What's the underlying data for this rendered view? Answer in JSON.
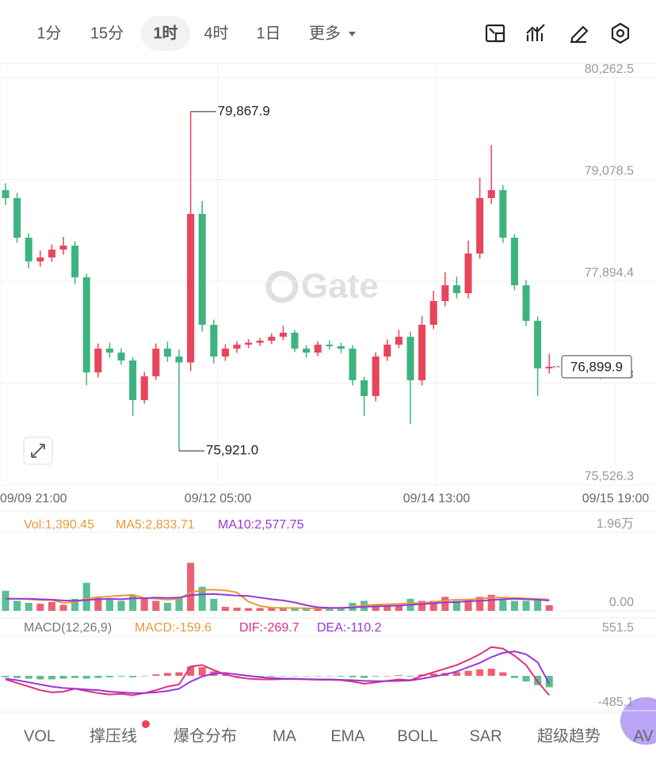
{
  "toolbar": {
    "intervals": [
      "1分",
      "15分",
      "1时",
      "4时",
      "1日"
    ],
    "active": 2,
    "more": "更多"
  },
  "watermark": "Gate",
  "chart_data": [
    {
      "type": "candlestick",
      "up_color": "#e8455c",
      "down_color": "#3db480",
      "open": [
        78954,
        78862,
        78401,
        78125,
        78171,
        78263,
        78309,
        77940,
        76835,
        77111,
        77065,
        76973,
        76512,
        76789,
        77111,
        77019,
        76950,
        78678,
        77388,
        77019,
        77111,
        77157,
        77180,
        77203,
        77249,
        77296,
        77111,
        77065,
        77157,
        77140,
        77111,
        76743,
        76559,
        77019,
        77157,
        77249,
        76743,
        77388,
        77664,
        77848,
        77756,
        78217,
        78862,
        78954,
        78401,
        77848,
        77434,
        76881
      ],
      "high": [
        79034,
        78922,
        78451,
        78251,
        78323,
        78409,
        78359,
        77980,
        77171,
        77181,
        77115,
        77013,
        76839,
        77171,
        77191,
        77099,
        79867.9,
        78828,
        77448,
        77161,
        77197,
        77220,
        77233,
        77289,
        77376,
        77326,
        77151,
        77197,
        77207,
        77180,
        77151,
        76783,
        77069,
        77217,
        77329,
        77309,
        77488,
        77784,
        77998,
        77948,
        78367,
        79100,
        79479,
        79014,
        78441,
        77908,
        77484,
        77050
      ],
      "low": [
        78782,
        78341,
        78045,
        78065,
        78121,
        78203,
        77860,
        76685,
        76775,
        77005,
        76923,
        76328,
        76472,
        76749,
        76959,
        75921.0,
        76850,
        77308,
        76939,
        76969,
        77061,
        77117,
        77140,
        77163,
        77209,
        77071,
        77005,
        77025,
        77100,
        77061,
        76683,
        76328,
        76499,
        76969,
        77117,
        76236,
        76683,
        77338,
        77604,
        77696,
        77696,
        78157,
        78792,
        78341,
        77788,
        77374,
        76559,
        76821
      ],
      "close": [
        78862,
        78401,
        78125,
        78171,
        78263,
        78309,
        77940,
        76835,
        77111,
        77065,
        76973,
        76512,
        76789,
        77111,
        77019,
        76950,
        78678,
        77388,
        77019,
        77111,
        77157,
        77180,
        77203,
        77249,
        77296,
        77111,
        77065,
        77157,
        77140,
        77111,
        76743,
        76559,
        77019,
        77157,
        77249,
        76743,
        77388,
        77664,
        77848,
        77756,
        78217,
        78862,
        78954,
        78401,
        77848,
        77434,
        76881,
        76899.9
      ],
      "ylim": [
        75526.3,
        80262.5
      ],
      "yticks": [
        {
          "value": 80262.5,
          "label": "80,262.5"
        },
        {
          "value": 79078.5,
          "label": "79,078.5"
        },
        {
          "value": 77894.4,
          "label": "77,894.4"
        },
        {
          "value": 76710.3,
          "label": "76,710.3"
        },
        {
          "value": 75526.3,
          "label": "75,526.3"
        }
      ],
      "xlim": [
        -0.48,
        56.23
      ],
      "xticks": [
        {
          "value": -0.48,
          "label": "09/09 21:00"
        },
        {
          "value": 18.36,
          "label": "09/12 05:00"
        },
        {
          "value": 37.26,
          "label": "09/14 13:00"
        },
        {
          "value": 52.74,
          "label": "09/15 19:00"
        }
      ],
      "annotations": [
        {
          "value": 79867.9,
          "label": "79,867.9"
        },
        {
          "value": 75921.0,
          "label": "75,921.0"
        }
      ],
      "last_price": {
        "value": 76899.9,
        "label": "76,899.9"
      },
      "grid": true
    },
    {
      "type": "bar",
      "ylim": [
        0,
        19600
      ],
      "yticks": [
        {
          "value": 19600,
          "label": "1.96万"
        },
        {
          "value": 0,
          "label": "0.00"
        }
      ],
      "series": [
        {
          "label": "Vol:1,390.45",
          "color": "#e89a3c",
          "values": [
            5000,
            2500,
            2000,
            1800,
            2200,
            1500,
            3000,
            7000,
            3500,
            3000,
            2500,
            4000,
            3000,
            2500,
            2000,
            3500,
            12000,
            6000,
            3000,
            1000,
            800,
            700,
            700,
            800,
            700,
            600,
            600,
            700,
            700,
            800,
            2000,
            2500,
            1500,
            1200,
            1500,
            3000,
            2500,
            2500,
            3500,
            2500,
            3000,
            3500,
            4000,
            3000,
            2500,
            2500,
            2800,
            1390.45
          ]
        },
        {
          "label": "MA5:2,833.71",
          "color": "#e89a3c",
          "values": [
            3000,
            3000,
            2900,
            2700,
            2700,
            2000,
            2200,
            3100,
            3400,
            3600,
            3800,
            4000,
            3200,
            3000,
            2800,
            3000,
            4600,
            5200,
            5300,
            5100,
            4600,
            2300,
            1200,
            800,
            740,
            700,
            660,
            660,
            660,
            700,
            960,
            1340,
            1540,
            1640,
            1740,
            1940,
            1940,
            2240,
            2600,
            2800,
            2800,
            3000,
            3300,
            3300,
            3200,
            3100,
            2960,
            2833.71
          ]
        },
        {
          "label": "MA10:2,577.75",
          "color": "#9b36d6",
          "values": [
            3000,
            3000,
            3000,
            2900,
            2800,
            2600,
            2500,
            2700,
            2900,
            3000,
            2900,
            3100,
            3150,
            3300,
            3200,
            3300,
            3900,
            4100,
            4200,
            4000,
            3800,
            3700,
            3300,
            2900,
            2600,
            2100,
            1400,
            900,
            750,
            740,
            830,
            1000,
            1100,
            1200,
            1300,
            1500,
            1700,
            1900,
            2100,
            2200,
            2400,
            2500,
            2700,
            2900,
            3000,
            2900,
            2800,
            2577.75
          ]
        }
      ]
    },
    {
      "type": "bar",
      "title": "MACD(12,26,9)",
      "ylim": [
        -485.1,
        551.5
      ],
      "yticks": [
        551.5,
        -485.1
      ],
      "series": [
        {
          "label": "MACD:-159.6",
          "color": "#e89a3c",
          "values": [
            -20,
            -30,
            -40,
            -50,
            -50,
            -40,
            -30,
            -40,
            -30,
            -20,
            -10,
            -20,
            0,
            20,
            40,
            50,
            130,
            120,
            60,
            20,
            0,
            -10,
            -10,
            -10,
            -5,
            -5,
            -5,
            -5,
            -5,
            -10,
            -20,
            -30,
            -10,
            0,
            10,
            -10,
            20,
            30,
            40,
            50,
            70,
            90,
            100,
            50,
            -30,
            -80,
            -130,
            -159.6
          ]
        },
        {
          "label": "DIF:-269.7",
          "color": "#e0307a",
          "values": [
            -50,
            -100,
            -150,
            -200,
            -230,
            -220,
            -180,
            -210,
            -240,
            -260,
            -250,
            -270,
            -240,
            -200,
            -150,
            -120,
            130,
            150,
            80,
            20,
            -20,
            -40,
            -50,
            -50,
            -45,
            -45,
            -50,
            -55,
            -55,
            -60,
            -80,
            -110,
            -90,
            -70,
            -50,
            -60,
            0,
            50,
            100,
            150,
            220,
            300,
            400,
            380,
            280,
            150,
            -80,
            -269.7
          ]
        },
        {
          "label": "DEA:-110.2",
          "color": "#9b36d6",
          "values": [
            -40,
            -60,
            -90,
            -120,
            -150,
            -170,
            -180,
            -190,
            -200,
            -220,
            -230,
            -240,
            -240,
            -230,
            -210,
            -180,
            -80,
            -10,
            30,
            40,
            20,
            0,
            -20,
            -30,
            -40,
            -40,
            -45,
            -50,
            -50,
            -55,
            -60,
            -70,
            -75,
            -75,
            -70,
            -65,
            -40,
            -10,
            20,
            60,
            120,
            180,
            260,
            320,
            340,
            300,
            190,
            -110.2
          ]
        }
      ]
    }
  ],
  "indicator_tabs": [
    "VOL",
    "撑压线",
    "爆仓分布",
    "MA",
    "EMA",
    "BOLL",
    "SAR",
    "超级趋势",
    "AV"
  ]
}
